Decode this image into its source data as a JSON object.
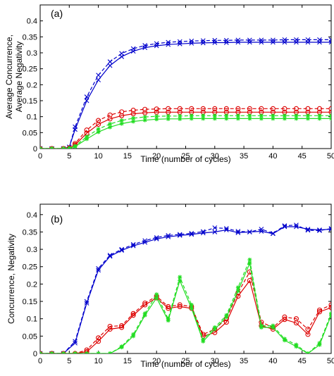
{
  "chart_data": [
    {
      "type": "line",
      "panel_label": "(a)",
      "xlabel": "Time (number of cycles)",
      "ylabel": [
        "Average Concurrence,",
        "Average Negativity"
      ],
      "xlim": [
        0,
        50
      ],
      "ylim": [
        0,
        0.45
      ],
      "xticks": [
        0,
        5,
        10,
        15,
        20,
        25,
        30,
        35,
        40,
        45,
        50
      ],
      "xtick_labels": [
        "0",
        "5",
        "10",
        "15",
        "20",
        "25",
        "30",
        "35",
        "40",
        "45",
        "50"
      ],
      "yticks": [
        0,
        0.05,
        0.1,
        0.15,
        0.2,
        0.25,
        0.3,
        0.35,
        0.4
      ],
      "ytick_labels": [
        "0",
        "0.05",
        "0.1",
        "0.15",
        "0.2",
        "0.25",
        "0.3",
        "0.35",
        "0.4"
      ],
      "grid": false,
      "legend": "none",
      "series": [
        {
          "color": "#0000cc",
          "marker": "x",
          "dash": "solid",
          "x": [
            0,
            2,
            4,
            5,
            6,
            8,
            10,
            12,
            14,
            16,
            18,
            20,
            22,
            24,
            26,
            28,
            30,
            32,
            34,
            36,
            38,
            40,
            42,
            44,
            46,
            48,
            50
          ],
          "y": [
            0,
            0,
            0,
            0.005,
            0.06,
            0.15,
            0.215,
            0.26,
            0.288,
            0.305,
            0.316,
            0.322,
            0.326,
            0.328,
            0.33,
            0.331,
            0.332,
            0.332,
            0.333,
            0.333,
            0.333,
            0.333,
            0.333,
            0.333,
            0.333,
            0.333,
            0.333
          ]
        },
        {
          "color": "#0000cc",
          "marker": "x",
          "dash": "dashed",
          "x": [
            0,
            2,
            4,
            5,
            6,
            8,
            10,
            12,
            14,
            16,
            18,
            20,
            22,
            24,
            26,
            28,
            30,
            32,
            34,
            36,
            38,
            40,
            42,
            44,
            46,
            48,
            50
          ],
          "y": [
            0,
            0,
            0,
            0.005,
            0.068,
            0.162,
            0.23,
            0.272,
            0.298,
            0.313,
            0.323,
            0.329,
            0.333,
            0.335,
            0.337,
            0.338,
            0.339,
            0.339,
            0.34,
            0.34,
            0.34,
            0.34,
            0.341,
            0.341,
            0.341,
            0.341,
            0.341
          ]
        },
        {
          "color": "#dd0000",
          "marker": "o",
          "dash": "solid",
          "x": [
            0,
            2,
            4,
            5,
            6,
            8,
            10,
            12,
            14,
            16,
            18,
            20,
            22,
            24,
            26,
            28,
            30,
            32,
            34,
            36,
            38,
            40,
            42,
            44,
            46,
            48,
            50
          ],
          "y": [
            0,
            0,
            0,
            0.002,
            0.012,
            0.048,
            0.076,
            0.093,
            0.103,
            0.109,
            0.112,
            0.114,
            0.114,
            0.114,
            0.114,
            0.114,
            0.114,
            0.114,
            0.114,
            0.114,
            0.114,
            0.114,
            0.114,
            0.114,
            0.114,
            0.114,
            0.114
          ]
        },
        {
          "color": "#dd0000",
          "marker": "o",
          "dash": "dashed",
          "x": [
            0,
            2,
            4,
            5,
            6,
            8,
            10,
            12,
            14,
            16,
            18,
            20,
            22,
            24,
            26,
            28,
            30,
            32,
            34,
            36,
            38,
            40,
            42,
            44,
            46,
            48,
            50
          ],
          "y": [
            0,
            0,
            0,
            0.002,
            0.016,
            0.058,
            0.088,
            0.105,
            0.115,
            0.12,
            0.123,
            0.124,
            0.125,
            0.125,
            0.125,
            0.125,
            0.125,
            0.125,
            0.125,
            0.125,
            0.125,
            0.125,
            0.125,
            0.125,
            0.125,
            0.125,
            0.125
          ]
        },
        {
          "color": "#22dd22",
          "marker": "*",
          "dash": "solid",
          "x": [
            0,
            2,
            4,
            5,
            6,
            8,
            10,
            12,
            14,
            16,
            18,
            20,
            22,
            24,
            26,
            28,
            30,
            32,
            34,
            36,
            38,
            40,
            42,
            44,
            46,
            48,
            50
          ],
          "y": [
            0,
            0,
            0,
            0.001,
            0.006,
            0.03,
            0.052,
            0.067,
            0.078,
            0.085,
            0.089,
            0.092,
            0.093,
            0.093,
            0.094,
            0.094,
            0.094,
            0.094,
            0.094,
            0.094,
            0.094,
            0.094,
            0.094,
            0.094,
            0.094,
            0.094,
            0.094
          ]
        },
        {
          "color": "#22dd22",
          "marker": "*",
          "dash": "dashed",
          "x": [
            0,
            2,
            4,
            5,
            6,
            8,
            10,
            12,
            14,
            16,
            18,
            20,
            22,
            24,
            26,
            28,
            30,
            32,
            34,
            36,
            38,
            40,
            42,
            44,
            46,
            48,
            50
          ],
          "y": [
            0,
            0,
            0,
            0.001,
            0.008,
            0.037,
            0.061,
            0.077,
            0.088,
            0.095,
            0.099,
            0.101,
            0.102,
            0.102,
            0.103,
            0.103,
            0.103,
            0.103,
            0.103,
            0.103,
            0.103,
            0.103,
            0.103,
            0.103,
            0.103,
            0.103,
            0.103
          ]
        }
      ]
    },
    {
      "type": "line",
      "panel_label": "(b)",
      "xlabel": "Time (number of cycles)",
      "ylabel": [
        "Concurrence, Negativity"
      ],
      "xlim": [
        0,
        50
      ],
      "ylim": [
        0,
        0.43
      ],
      "xticks": [
        0,
        5,
        10,
        15,
        20,
        25,
        30,
        35,
        40,
        45,
        50
      ],
      "xtick_labels": [
        "0",
        "5",
        "10",
        "15",
        "20",
        "25",
        "30",
        "35",
        "40",
        "45",
        "50"
      ],
      "yticks": [
        0,
        0.05,
        0.1,
        0.15,
        0.2,
        0.25,
        0.3,
        0.35,
        0.4
      ],
      "ytick_labels": [
        "0",
        "0.05",
        "0.1",
        "0.15",
        "0.2",
        "0.25",
        "0.3",
        "0.35",
        "0.4"
      ],
      "grid": false,
      "legend": "none",
      "series": [
        {
          "color": "#0000cc",
          "marker": "x",
          "dash": "solid",
          "x": [
            0,
            2,
            4,
            6,
            8,
            10,
            12,
            14,
            16,
            18,
            20,
            22,
            24,
            26,
            28,
            30,
            32,
            34,
            36,
            38,
            40,
            42,
            44,
            46,
            48,
            50
          ],
          "y": [
            0,
            0,
            0,
            0.03,
            0.145,
            0.24,
            0.28,
            0.297,
            0.31,
            0.32,
            0.33,
            0.336,
            0.34,
            0.343,
            0.347,
            0.35,
            0.356,
            0.348,
            0.35,
            0.352,
            0.345,
            0.365,
            0.365,
            0.358,
            0.356,
            0.358
          ]
        },
        {
          "color": "#0000cc",
          "marker": "x",
          "dash": "dashed",
          "x": [
            0,
            2,
            4,
            6,
            8,
            10,
            12,
            14,
            16,
            18,
            20,
            22,
            24,
            26,
            28,
            30,
            32,
            34,
            36,
            38,
            40,
            42,
            44,
            46,
            48,
            50
          ],
          "y": [
            0,
            0,
            0,
            0.035,
            0.15,
            0.245,
            0.283,
            0.3,
            0.314,
            0.325,
            0.334,
            0.34,
            0.343,
            0.346,
            0.351,
            0.362,
            0.36,
            0.352,
            0.35,
            0.358,
            0.346,
            0.368,
            0.37,
            0.355,
            0.354,
            0.36
          ]
        },
        {
          "color": "#dd0000",
          "marker": "o",
          "dash": "solid",
          "x": [
            0,
            2,
            4,
            6,
            8,
            10,
            12,
            14,
            16,
            18,
            20,
            22,
            24,
            26,
            28,
            30,
            32,
            34,
            36,
            38,
            40,
            42,
            44,
            46,
            48,
            50
          ],
          "y": [
            0,
            0,
            0,
            0,
            0.005,
            0.035,
            0.07,
            0.075,
            0.11,
            0.14,
            0.16,
            0.13,
            0.135,
            0.13,
            0.05,
            0.06,
            0.09,
            0.165,
            0.21,
            0.08,
            0.07,
            0.098,
            0.088,
            0.055,
            0.12,
            0.132
          ]
        },
        {
          "color": "#dd0000",
          "marker": "o",
          "dash": "dashed",
          "x": [
            0,
            2,
            4,
            6,
            8,
            10,
            12,
            14,
            16,
            18,
            20,
            22,
            24,
            26,
            28,
            30,
            32,
            34,
            36,
            38,
            40,
            42,
            44,
            46,
            48,
            50
          ],
          "y": [
            0,
            0,
            0,
            0,
            0.01,
            0.045,
            0.078,
            0.08,
            0.115,
            0.145,
            0.165,
            0.135,
            0.14,
            0.135,
            0.055,
            0.07,
            0.1,
            0.175,
            0.235,
            0.09,
            0.075,
            0.105,
            0.1,
            0.07,
            0.125,
            0.14
          ]
        },
        {
          "color": "#22dd22",
          "marker": "*",
          "dash": "solid",
          "x": [
            0,
            2,
            4,
            6,
            8,
            10,
            12,
            14,
            16,
            18,
            20,
            22,
            24,
            26,
            28,
            30,
            32,
            34,
            36,
            38,
            40,
            42,
            44,
            46,
            48,
            50
          ],
          "y": [
            0,
            0,
            0,
            0,
            0,
            0,
            0,
            0.018,
            0.05,
            0.11,
            0.16,
            0.095,
            0.21,
            0.13,
            0.035,
            0.07,
            0.105,
            0.18,
            0.26,
            0.075,
            0.075,
            0.038,
            0.02,
            0,
            0.025,
            0.11
          ]
        },
        {
          "color": "#22dd22",
          "marker": "*",
          "dash": "dashed",
          "x": [
            0,
            2,
            4,
            6,
            8,
            10,
            12,
            14,
            16,
            18,
            20,
            22,
            24,
            26,
            28,
            30,
            32,
            34,
            36,
            38,
            40,
            42,
            44,
            46,
            48,
            50
          ],
          "y": [
            0,
            0,
            0,
            0,
            0,
            0,
            0,
            0.02,
            0.055,
            0.115,
            0.17,
            0.1,
            0.22,
            0.14,
            0.04,
            0.075,
            0.11,
            0.19,
            0.27,
            0.08,
            0.08,
            0.042,
            0.025,
            0,
            0.03,
            0.115
          ]
        }
      ]
    }
  ]
}
